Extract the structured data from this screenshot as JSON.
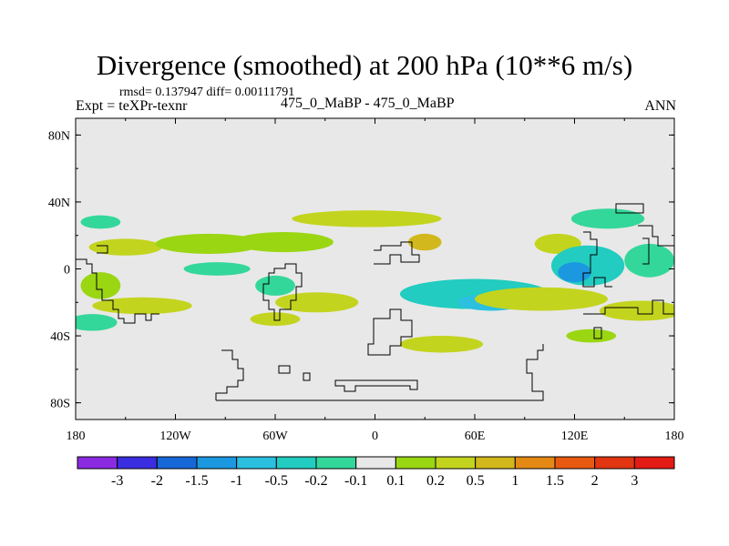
{
  "header": {
    "title": "Divergence (smoothed) at 200 hPa (10**6 m/s)",
    "stats": "rmsd= 0.137947 diff= 0.00111791",
    "experiment": "Expt = teXPr-texnr",
    "cases": "475_0_MaBP - 475_0_MaBP",
    "season": "ANN"
  },
  "chart_data": {
    "type": "heatmap",
    "title": "Divergence (smoothed) at 200 hPa (10**6 m/s)",
    "x": {
      "tick_labels": [
        "180",
        "120W",
        "60W",
        "0",
        "60E",
        "120E",
        "180"
      ],
      "tick_values": [
        -180,
        -120,
        -60,
        0,
        60,
        120,
        180
      ],
      "range": [
        -180,
        180
      ]
    },
    "y": {
      "tick_labels": [
        "80N",
        "40N",
        "0",
        "40S",
        "80S"
      ],
      "tick_values": [
        80,
        40,
        0,
        -40,
        -80
      ],
      "range": [
        -90,
        90
      ]
    },
    "colorbar": {
      "levels": [
        "-3",
        "-2",
        "-1.5",
        "-1",
        "-0.5",
        "-0.2",
        "-0.1",
        "0.1",
        "0.2",
        "0.5",
        "1",
        "1.5",
        "2",
        "3"
      ],
      "colors": [
        "#8a2be2",
        "#3b2ee0",
        "#1668d8",
        "#1b98e0",
        "#2bbfe0",
        "#22ccc0",
        "#33d79a",
        "#e8e8e8",
        "#9ad612",
        "#c3d41e",
        "#d2b81c",
        "#e48a14",
        "#e85a12",
        "#e23512",
        "#e41a14"
      ]
    },
    "field_color": "#e8e8e8",
    "features": [
      {
        "lon": -165,
        "lat": 28,
        "rx": 12,
        "ry": 4,
        "bin": 6
      },
      {
        "lon": -150,
        "lat": 13,
        "rx": 22,
        "ry": 5,
        "bin": 9
      },
      {
        "lon": -100,
        "lat": 15,
        "rx": 32,
        "ry": 6,
        "bin": 8
      },
      {
        "lon": -55,
        "lat": 16,
        "rx": 30,
        "ry": 6,
        "bin": 8
      },
      {
        "lon": -5,
        "lat": 30,
        "rx": 45,
        "ry": 5,
        "bin": 9
      },
      {
        "lon": 30,
        "lat": 16,
        "rx": 10,
        "ry": 5,
        "bin": 10
      },
      {
        "lon": 110,
        "lat": 15,
        "rx": 14,
        "ry": 6,
        "bin": 9
      },
      {
        "lon": 140,
        "lat": 30,
        "rx": 22,
        "ry": 6,
        "bin": 6
      },
      {
        "lon": 128,
        "lat": 2,
        "rx": 22,
        "ry": 12,
        "bin": 5
      },
      {
        "lon": 120,
        "lat": -2,
        "rx": 10,
        "ry": 6,
        "bin": 3
      },
      {
        "lon": 165,
        "lat": 5,
        "rx": 15,
        "ry": 10,
        "bin": 6
      },
      {
        "lon": 60,
        "lat": -15,
        "rx": 45,
        "ry": 9,
        "bin": 5
      },
      {
        "lon": 70,
        "lat": -20,
        "rx": 20,
        "ry": 5,
        "bin": 4
      },
      {
        "lon": 100,
        "lat": -18,
        "rx": 40,
        "ry": 7,
        "bin": 9
      },
      {
        "lon": 160,
        "lat": -25,
        "rx": 25,
        "ry": 6,
        "bin": 9
      },
      {
        "lon": -165,
        "lat": -10,
        "rx": 12,
        "ry": 8,
        "bin": 8
      },
      {
        "lon": -140,
        "lat": -22,
        "rx": 30,
        "ry": 5,
        "bin": 9
      },
      {
        "lon": -95,
        "lat": 0,
        "rx": 20,
        "ry": 4,
        "bin": 6
      },
      {
        "lon": -35,
        "lat": -20,
        "rx": 25,
        "ry": 6,
        "bin": 9
      },
      {
        "lon": -60,
        "lat": -10,
        "rx": 12,
        "ry": 6,
        "bin": 6
      },
      {
        "lon": -60,
        "lat": -30,
        "rx": 15,
        "ry": 4,
        "bin": 9
      },
      {
        "lon": 40,
        "lat": -45,
        "rx": 25,
        "ry": 5,
        "bin": 9
      },
      {
        "lon": 130,
        "lat": -40,
        "rx": 15,
        "ry": 4,
        "bin": 8
      },
      {
        "lon": -170,
        "lat": -32,
        "rx": 15,
        "ry": 5,
        "bin": 6
      }
    ]
  }
}
